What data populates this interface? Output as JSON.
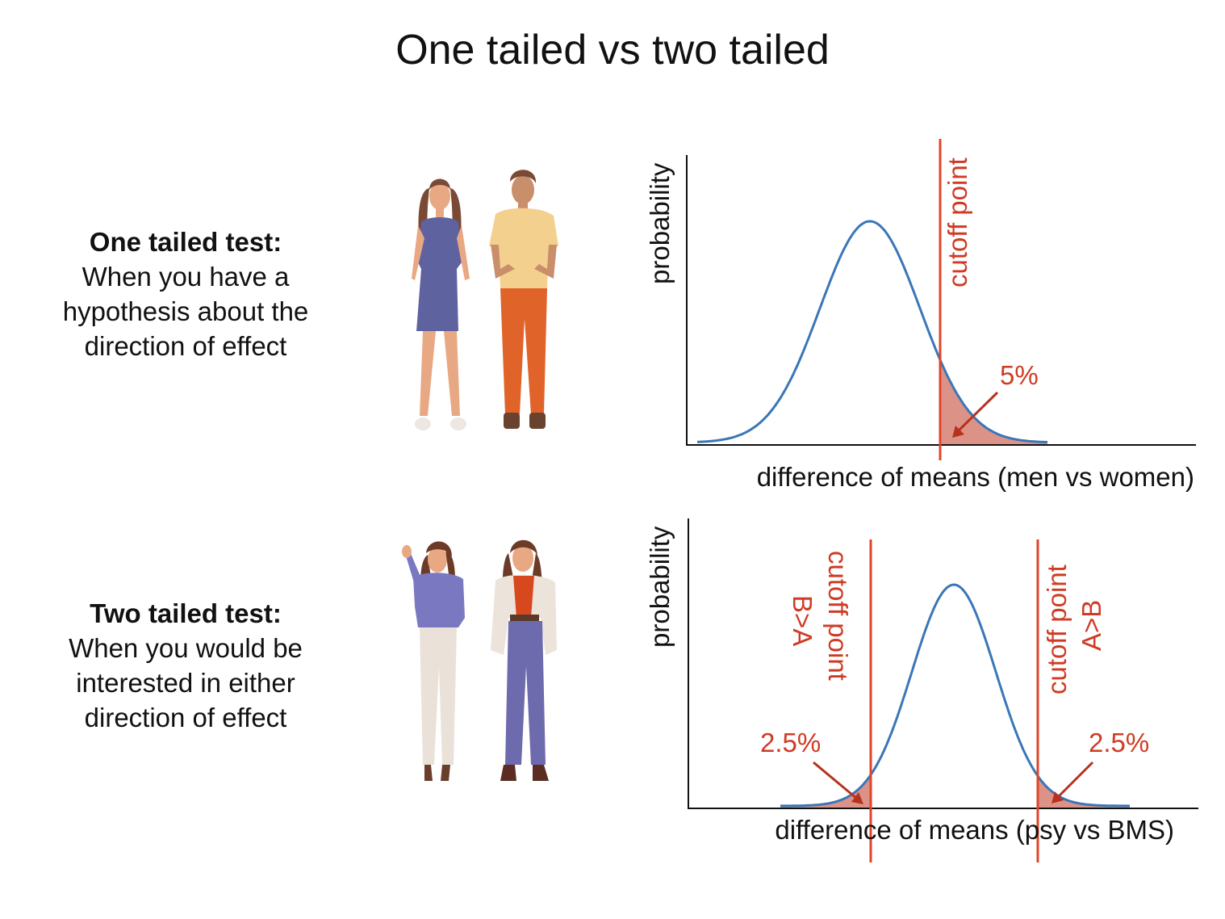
{
  "title": "One tailed vs two tailed",
  "one_tailed": {
    "heading": "One tailed test:",
    "lines": [
      "When you have a",
      "hypothesis about the",
      "direction of effect"
    ]
  },
  "two_tailed": {
    "heading": "Two tailed test:",
    "lines": [
      "When you would be",
      "interested in either",
      "direction of effect"
    ]
  },
  "colors": {
    "curve": "#3a76b8",
    "cutoff": "#e0452a",
    "shade": "#d9867a",
    "arrow": "#b6321e",
    "label_red": "#cf3b24"
  },
  "chart_data": [
    {
      "type": "line",
      "title": "",
      "xlabel": "difference of means (men vs women)",
      "ylabel": "probability",
      "curve": "normal",
      "cutoffs": [
        {
          "label_lines": [
            "cutoff point"
          ]
        }
      ],
      "tail_labels": [
        "5%"
      ]
    },
    {
      "type": "line",
      "title": "",
      "xlabel": "difference of means (psy vs BMS)",
      "ylabel": "probability",
      "curve": "normal",
      "cutoffs": [
        {
          "label_lines": [
            "cutoff point",
            "B>A"
          ]
        },
        {
          "label_lines": [
            "cutoff point",
            "A>B"
          ]
        }
      ],
      "tail_labels": [
        "2.5%",
        "2.5%"
      ]
    }
  ]
}
